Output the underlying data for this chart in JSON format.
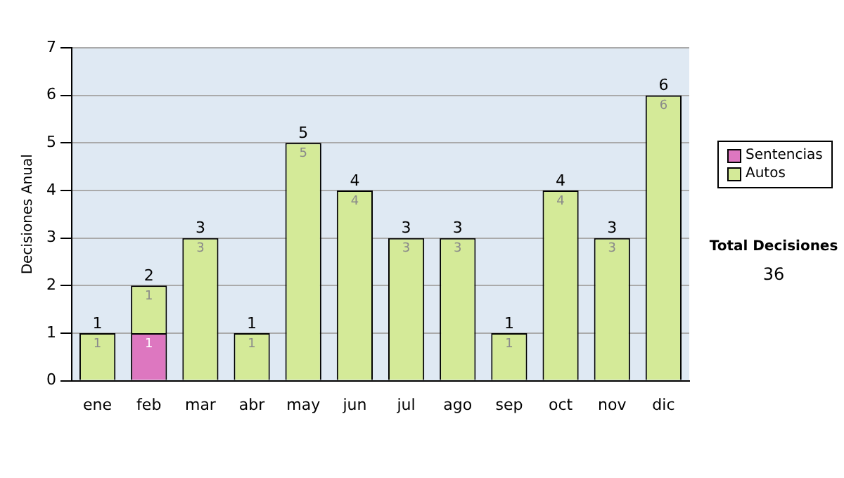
{
  "chart_data": {
    "type": "bar",
    "stacked": true,
    "ylabel": "Decisiones Anual",
    "categories": [
      "ene",
      "feb",
      "mar",
      "abr",
      "may",
      "jun",
      "jul",
      "ago",
      "sep",
      "oct",
      "nov",
      "dic"
    ],
    "series": [
      {
        "name": "Sentencias",
        "color": "#dd77c0",
        "values": [
          0,
          1,
          0,
          0,
          0,
          0,
          0,
          0,
          0,
          0,
          0,
          0
        ],
        "value_labels": [
          null,
          "1",
          null,
          null,
          null,
          null,
          null,
          null,
          null,
          null,
          null,
          null
        ]
      },
      {
        "name": "Autos",
        "color": "#d4ea98",
        "values": [
          1,
          1,
          3,
          1,
          5,
          4,
          3,
          3,
          1,
          4,
          3,
          6
        ],
        "value_labels": [
          "1",
          "1",
          "3",
          "1",
          "5",
          "4",
          "3",
          "3",
          "1",
          "4",
          "3",
          "6"
        ]
      }
    ],
    "totals": [
      "1",
      "2",
      "3",
      "1",
      "5",
      "4",
      "3",
      "3",
      "1",
      "4",
      "3",
      "6"
    ],
    "ylim": [
      0,
      7
    ],
    "yticks": [
      0,
      1,
      2,
      3,
      4,
      5,
      6,
      7
    ],
    "grid": "y",
    "legend": "right",
    "annotations": [
      "Total Decisiones",
      "36"
    ]
  }
}
